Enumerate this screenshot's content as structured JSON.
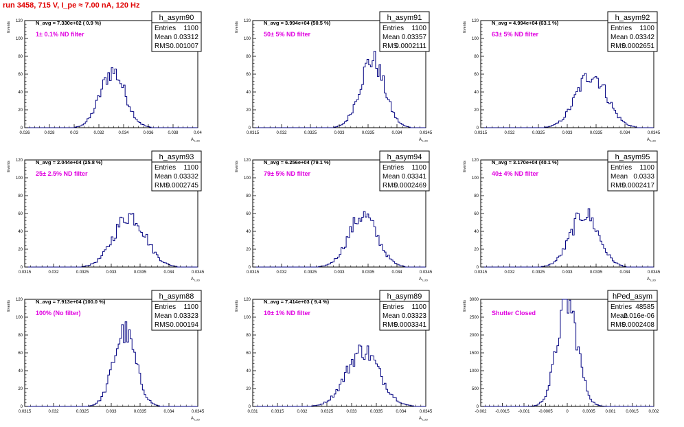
{
  "page": {
    "run_title": "run 3458,   715 V, I_pe ≈ 7.00 nA, 120 Hz",
    "colors": {
      "title": "#e00000",
      "histogram": "#000080",
      "annotation": "#e000e0",
      "axis": "#000000"
    }
  },
  "chart_data": [
    {
      "type": "histogram",
      "name": "h_asym90",
      "stats": {
        "entries_label": "Entries",
        "entries": "1100",
        "mean_label": "Mean",
        "mean": "0.03312",
        "rms_label": "RMS",
        "rms": "0.001007"
      },
      "navg": "N_avg = 7.330e+02 ( 0.9 %)",
      "filter": "1± 0.1% ND filter",
      "xlabel": "A",
      "xlabel_sub": "LUD",
      "ylabel": "Events",
      "xlim": [
        0.026,
        0.04
      ],
      "ylim": [
        0,
        120
      ],
      "xticks": [
        "0.026",
        "0.028",
        "0.03",
        "0.032",
        "0.034",
        "0.036",
        "0.038",
        "0.04"
      ],
      "yticks": [
        "0",
        "20",
        "40",
        "60",
        "80",
        "100",
        "120"
      ],
      "mean_val": 0.03312,
      "sigma": 0.001007,
      "peak": 63
    },
    {
      "type": "histogram",
      "name": "h_asym91",
      "stats": {
        "entries_label": "Entries",
        "entries": "1100",
        "mean_label": "Mean",
        "mean": "0.03357",
        "rms_label": "RMS",
        "rms": "0.0002111"
      },
      "navg": "N_avg = 3.994e+04 (50.5 %)",
      "filter": "50± 5% ND filter",
      "xlabel": "A",
      "xlabel_sub": "LUD",
      "ylabel": "Events",
      "xlim": [
        0.0315,
        0.0345
      ],
      "ylim": [
        0,
        120
      ],
      "xticks": [
        "0.0315",
        "0.032",
        "0.0325",
        "0.033",
        "0.0335",
        "0.034",
        "0.0345"
      ],
      "yticks": [
        "0",
        "20",
        "40",
        "60",
        "80",
        "100",
        "120"
      ],
      "mean_val": 0.03357,
      "sigma": 0.0002111,
      "peak": 76
    },
    {
      "type": "histogram",
      "name": "h_asym92",
      "stats": {
        "entries_label": "Entries",
        "entries": "1100",
        "mean_label": "Mean",
        "mean": "0.03342",
        "rms_label": "RMS",
        "rms": "0.0002651"
      },
      "navg": "N_avg = 4.994e+04 (63.1 %)",
      "filter": "63± 5% ND filter",
      "xlabel": "A",
      "xlabel_sub": "LUD",
      "ylabel": "Events",
      "xlim": [
        0.0315,
        0.0345
      ],
      "ylim": [
        0,
        120
      ],
      "xticks": [
        "0.0315",
        "0.032",
        "0.0325",
        "0.033",
        "0.0335",
        "0.034",
        "0.0345"
      ],
      "yticks": [
        "0",
        "20",
        "40",
        "60",
        "80",
        "100",
        "120"
      ],
      "mean_val": 0.03342,
      "sigma": 0.0002651,
      "peak": 60
    },
    {
      "type": "histogram",
      "name": "h_asym93",
      "stats": {
        "entries_label": "Entries",
        "entries": "1100",
        "mean_label": "Mean",
        "mean": "0.03332",
        "rms_label": "RMS",
        "rms": "0.0002745"
      },
      "navg": "N_avg = 2.044e+04 (25.8 %)",
      "filter": "25± 2.5% ND filter",
      "xlabel": "A",
      "xlabel_sub": "LUD",
      "ylabel": "Events",
      "xlim": [
        0.0315,
        0.0345
      ],
      "ylim": [
        0,
        120
      ],
      "xticks": [
        "0.0315",
        "0.032",
        "0.0325",
        "0.033",
        "0.0335",
        "0.034",
        "0.0345"
      ],
      "yticks": [
        "0",
        "20",
        "40",
        "60",
        "80",
        "100",
        "120"
      ],
      "mean_val": 0.03332,
      "sigma": 0.0002745,
      "peak": 58
    },
    {
      "type": "histogram",
      "name": "h_asym94",
      "stats": {
        "entries_label": "Entries",
        "entries": "1100",
        "mean_label": "Mean",
        "mean": "0.03341",
        "rms_label": "RMS",
        "rms": "0.0002469"
      },
      "navg": "N_avg = 6.256e+04 (79.1 %)",
      "filter": "79± 5% ND filter",
      "xlabel": "A",
      "xlabel_sub": "LUD",
      "ylabel": "Events",
      "xlim": [
        0.0315,
        0.0345
      ],
      "ylim": [
        0,
        120
      ],
      "xticks": [
        "0.0315",
        "0.032",
        "0.0325",
        "0.033",
        "0.0335",
        "0.034",
        "0.0345"
      ],
      "yticks": [
        "0",
        "20",
        "40",
        "60",
        "80",
        "100",
        "120"
      ],
      "mean_val": 0.03341,
      "sigma": 0.0002469,
      "peak": 58
    },
    {
      "type": "histogram",
      "name": "h_asym95",
      "stats": {
        "entries_label": "Entries",
        "entries": "1100",
        "mean_label": "Mean",
        "mean": "0.0333",
        "rms_label": "RMS",
        "rms": "0.0002417"
      },
      "navg": "N_avg = 3.170e+04 (40.1 %)",
      "filter": "40± 4% ND filter",
      "xlabel": "A",
      "xlabel_sub": "LUD",
      "ylabel": "Events",
      "xlim": [
        0.0315,
        0.0345
      ],
      "ylim": [
        0,
        120
      ],
      "xticks": [
        "0.0315",
        "0.032",
        "0.0325",
        "0.033",
        "0.0335",
        "0.034",
        "0.0345"
      ],
      "yticks": [
        "0",
        "20",
        "40",
        "60",
        "80",
        "100",
        "120"
      ],
      "mean_val": 0.0333,
      "sigma": 0.0002417,
      "peak": 60
    },
    {
      "type": "histogram",
      "name": "h_asym88",
      "stats": {
        "entries_label": "Entries",
        "entries": "1100",
        "mean_label": "Mean",
        "mean": "0.03323",
        "rms_label": "RMS",
        "rms": "0.000194"
      },
      "navg": "N_avg = 7.913e+04 (100.0 %)",
      "filter": "100% (No filter)",
      "xlabel": "A",
      "xlabel_sub": "LUD",
      "ylabel": "Events",
      "xlim": [
        0.0315,
        0.0345
      ],
      "ylim": [
        0,
        120
      ],
      "xticks": [
        "0.0315",
        "0.032",
        "0.0325",
        "0.033",
        "0.0335",
        "0.034",
        "0.0345"
      ],
      "yticks": [
        "0",
        "20",
        "40",
        "60",
        "80",
        "100",
        "120"
      ],
      "mean_val": 0.03323,
      "sigma": 0.000194,
      "peak": 83
    },
    {
      "type": "histogram",
      "name": "h_asym89",
      "stats": {
        "entries_label": "Entries",
        "entries": "1100",
        "mean_label": "Mean",
        "mean": "0.03323",
        "rms_label": "RMS",
        "rms": "0.0003341"
      },
      "navg": "N_avg = 7.414e+03 ( 9.4 %)",
      "filter": "10± 1% ND filter",
      "xlabel": "A",
      "xlabel_sub": "LUD",
      "ylabel": "Events",
      "xlim": [
        0.031,
        0.0345
      ],
      "ylim": [
        0,
        120
      ],
      "xticks": [
        "0.031",
        "0.0315",
        "0.032",
        "0.0325",
        "0.033",
        "0.0335",
        "0.034",
        "0.0345"
      ],
      "yticks": [
        "0",
        "20",
        "40",
        "60",
        "80",
        "100",
        "120"
      ],
      "mean_val": 0.03323,
      "sigma": 0.0003341,
      "peak": 63
    },
    {
      "type": "histogram",
      "name": "hPed_asym",
      "stats": {
        "entries_label": "Entries",
        "entries": "48585",
        "mean_label": "Mean",
        "mean": "-2.016e-06",
        "rms_label": "RMS",
        "rms": "0.0002408"
      },
      "navg": "",
      "filter": "Shutter Closed",
      "xlabel": "",
      "xlabel_sub": "",
      "ylabel": "Events",
      "xlim": [
        -0.002,
        0.002
      ],
      "ylim": [
        0,
        3200
      ],
      "xticks": [
        "-0.002",
        "-0.0015",
        "-0.001",
        "-0.0005",
        "0",
        "0.0005",
        "0.001",
        "0.0015",
        "0.002"
      ],
      "yticks": [
        "0",
        "500",
        "1000",
        "1500",
        "2000",
        "2500",
        "3000"
      ],
      "mean_val": 0.0,
      "sigma": 0.00024,
      "peak": 3100
    }
  ]
}
